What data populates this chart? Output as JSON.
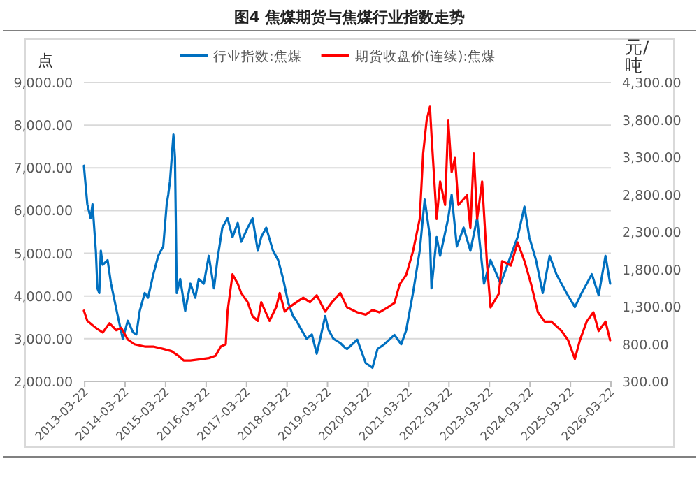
{
  "chart_data": {
    "type": "line",
    "title": "图4   焦煤期货与焦煤行业指数走势",
    "ylabel": "点",
    "y2label": "元/吨",
    "xlim": [
      "2013-03-15",
      "2026-03-22"
    ],
    "xticks": [
      "2013-03-22",
      "2014-03-22",
      "2015-03-22",
      "2016-03-22",
      "2017-03-22",
      "2018-03-22",
      "2019-03-22",
      "2020-03-22",
      "2021-03-22",
      "2022-03-22",
      "2023-03-22",
      "2024-03-22",
      "2025-03-22",
      "2026-03-22"
    ],
    "ylim": [
      2000,
      9000
    ],
    "yticks": [
      {
        "value": 2000,
        "label": "2,000.00"
      },
      {
        "value": 3000,
        "label": "3,000.00"
      },
      {
        "value": 4000,
        "label": "4,000.00"
      },
      {
        "value": 5000,
        "label": "5,000.00"
      },
      {
        "value": 6000,
        "label": "6,000.00"
      },
      {
        "value": 7000,
        "label": "7,000.00"
      },
      {
        "value": 8000,
        "label": "8,000.00"
      },
      {
        "value": 9000,
        "label": "9,000.00"
      }
    ],
    "y2lim": [
      300,
      4300
    ],
    "y2ticks": [
      {
        "value": 300,
        "label": "300.00"
      },
      {
        "value": 800,
        "label": "800.00"
      },
      {
        "value": 1300,
        "label": "1,300.00"
      },
      {
        "value": 1800,
        "label": "1,800.00"
      },
      {
        "value": 2300,
        "label": "2,300.00"
      },
      {
        "value": 2800,
        "label": "2,800.00"
      },
      {
        "value": 3300,
        "label": "3,300.00"
      },
      {
        "value": 3800,
        "label": "3,800.00"
      },
      {
        "value": 4300,
        "label": "4,300.00"
      }
    ],
    "grid": "y",
    "legend": "top",
    "marker": "none",
    "line_style": "solid",
    "series": [
      {
        "name": "行业指数:焦煤",
        "color": "#0070c0",
        "x": [
          "2013-03-15",
          "2013-04-15",
          "2013-05-15",
          "2013-06-01",
          "2013-07-01",
          "2013-07-15",
          "2013-08-01",
          "2013-08-15",
          "2013-09-01",
          "2013-10-15",
          "2013-11-15",
          "2014-01-15",
          "2014-03-01",
          "2014-04-15",
          "2014-06-01",
          "2014-07-01",
          "2014-08-01",
          "2014-09-15",
          "2014-10-15",
          "2014-12-01",
          "2015-01-15",
          "2015-03-01",
          "2015-04-01",
          "2015-04-15",
          "2015-05-01",
          "2015-06-01",
          "2015-06-15",
          "2015-07-01",
          "2015-08-01",
          "2015-09-15",
          "2015-11-01",
          "2015-12-15",
          "2016-01-15",
          "2016-03-01",
          "2016-04-15",
          "2016-06-01",
          "2016-07-01",
          "2016-08-15",
          "2016-10-01",
          "2016-11-15",
          "2017-01-01",
          "2017-02-01",
          "2017-04-01",
          "2017-05-15",
          "2017-07-01",
          "2017-08-01",
          "2017-09-15",
          "2017-11-15",
          "2018-01-01",
          "2018-02-15",
          "2018-04-01",
          "2018-05-15",
          "2018-06-15",
          "2018-08-01",
          "2018-09-15",
          "2018-11-01",
          "2018-12-15",
          "2019-01-15",
          "2019-03-01",
          "2019-04-01",
          "2019-05-15",
          "2019-07-15",
          "2019-09-01",
          "2019-09-15",
          "2019-12-15",
          "2020-03-01",
          "2020-05-01",
          "2020-06-15",
          "2020-08-15",
          "2020-11-15",
          "2021-01-15",
          "2021-03-01",
          "2021-05-01",
          "2021-07-01",
          "2021-08-15",
          "2021-10-01",
          "2021-10-15",
          "2021-12-01",
          "2022-01-01",
          "2022-03-15",
          "2022-04-15",
          "2022-06-01",
          "2022-08-01",
          "2022-10-01",
          "2022-12-01",
          "2023-02-01",
          "2023-04-01",
          "2023-07-01",
          "2023-09-01",
          "2023-12-01",
          "2024-02-01",
          "2024-03-15",
          "2024-05-15",
          "2024-07-15",
          "2024-09-15",
          "2024-11-15",
          "2025-02-15",
          "2025-05-01",
          "2025-07-01",
          "2025-10-01",
          "2025-12-01",
          "2026-02-01",
          "2026-03-15"
        ],
        "values": [
          7050,
          6150,
          5820,
          6150,
          5060,
          4180,
          4070,
          5060,
          4730,
          4840,
          4290,
          3530,
          3000,
          3420,
          3150,
          3100,
          3650,
          4070,
          3960,
          4500,
          4940,
          5160,
          6150,
          6370,
          6690,
          7780,
          7240,
          4070,
          4400,
          3650,
          4290,
          3960,
          4400,
          4290,
          4940,
          4180,
          4840,
          5600,
          5820,
          5380,
          5710,
          5270,
          5600,
          5820,
          5060,
          5380,
          5600,
          5060,
          4840,
          4400,
          3850,
          3530,
          3420,
          3200,
          3000,
          3100,
          2650,
          3000,
          3530,
          3200,
          3000,
          2900,
          2780,
          2760,
          2980,
          2430,
          2320,
          2760,
          2870,
          3090,
          2870,
          3200,
          4070,
          5060,
          6260,
          5380,
          4180,
          5380,
          4940,
          5820,
          6370,
          5160,
          5600,
          5060,
          5820,
          4290,
          4840,
          4290,
          4730,
          5380,
          6090,
          5380,
          4840,
          4070,
          4940,
          4510,
          4070,
          3740,
          4070,
          4510,
          4020,
          4940,
          4290
        ]
      },
      {
        "name": "期货收盘价(连续):焦煤",
        "color": "#ff0000",
        "axis": "y2",
        "x": [
          "2013-03-15",
          "2013-04-15",
          "2013-07-01",
          "2013-09-01",
          "2013-11-01",
          "2014-01-01",
          "2014-02-15",
          "2014-04-15",
          "2014-06-15",
          "2014-09-15",
          "2014-12-01",
          "2015-03-01",
          "2015-05-15",
          "2015-07-15",
          "2015-09-01",
          "2015-11-01",
          "2016-01-15",
          "2016-04-15",
          "2016-06-15",
          "2016-08-01",
          "2016-09-15",
          "2016-10-01",
          "2016-11-15",
          "2017-01-01",
          "2017-02-01",
          "2017-04-01",
          "2017-05-15",
          "2017-07-01",
          "2017-08-01",
          "2017-10-15",
          "2017-12-15",
          "2018-01-15",
          "2018-03-01",
          "2018-04-15",
          "2018-06-15",
          "2018-08-15",
          "2018-10-15",
          "2018-12-15",
          "2019-03-01",
          "2019-05-01",
          "2019-07-15",
          "2019-09-15",
          "2019-12-15",
          "2020-03-01",
          "2020-05-01",
          "2020-07-01",
          "2020-09-15",
          "2020-11-15",
          "2021-01-01",
          "2021-03-01",
          "2021-05-01",
          "2021-07-01",
          "2021-08-01",
          "2021-09-01",
          "2021-10-01",
          "2021-10-15",
          "2021-12-01",
          "2022-01-01",
          "2022-02-15",
          "2022-03-15",
          "2022-04-15",
          "2022-05-15",
          "2022-06-15",
          "2022-09-01",
          "2022-10-01",
          "2022-11-01",
          "2022-12-01",
          "2023-01-15",
          "2023-03-01",
          "2023-04-01",
          "2023-06-15",
          "2023-07-15",
          "2023-10-01",
          "2023-12-01",
          "2024-02-01",
          "2024-04-01",
          "2024-06-01",
          "2024-08-01",
          "2024-10-01",
          "2025-01-01",
          "2025-03-01",
          "2025-05-01",
          "2025-06-15",
          "2025-08-15",
          "2025-10-15",
          "2025-12-01",
          "2026-02-01",
          "2026-03-15"
        ],
        "values": [
          1247,
          1110,
          1016,
          954,
          1079,
          985,
          1016,
          861,
          798,
          767,
          767,
          736,
          705,
          643,
          580,
          580,
          593,
          612,
          643,
          767,
          798,
          1235,
          1733,
          1608,
          1484,
          1359,
          1172,
          1110,
          1359,
          1110,
          1297,
          1484,
          1235,
          1297,
          1359,
          1421,
          1359,
          1453,
          1235,
          1359,
          1484,
          1290,
          1225,
          1194,
          1256,
          1225,
          1290,
          1350,
          1600,
          1725,
          2040,
          2475,
          3350,
          3790,
          3975,
          3600,
          2475,
          2975,
          2660,
          3790,
          3100,
          3290,
          2660,
          2790,
          2350,
          3350,
          2475,
          2975,
          1850,
          1290,
          1475,
          1910,
          1850,
          2160,
          1910,
          1600,
          1225,
          1100,
          1100,
          975,
          850,
          600,
          850,
          1100,
          1225,
          975,
          1100,
          850
        ]
      }
    ]
  }
}
